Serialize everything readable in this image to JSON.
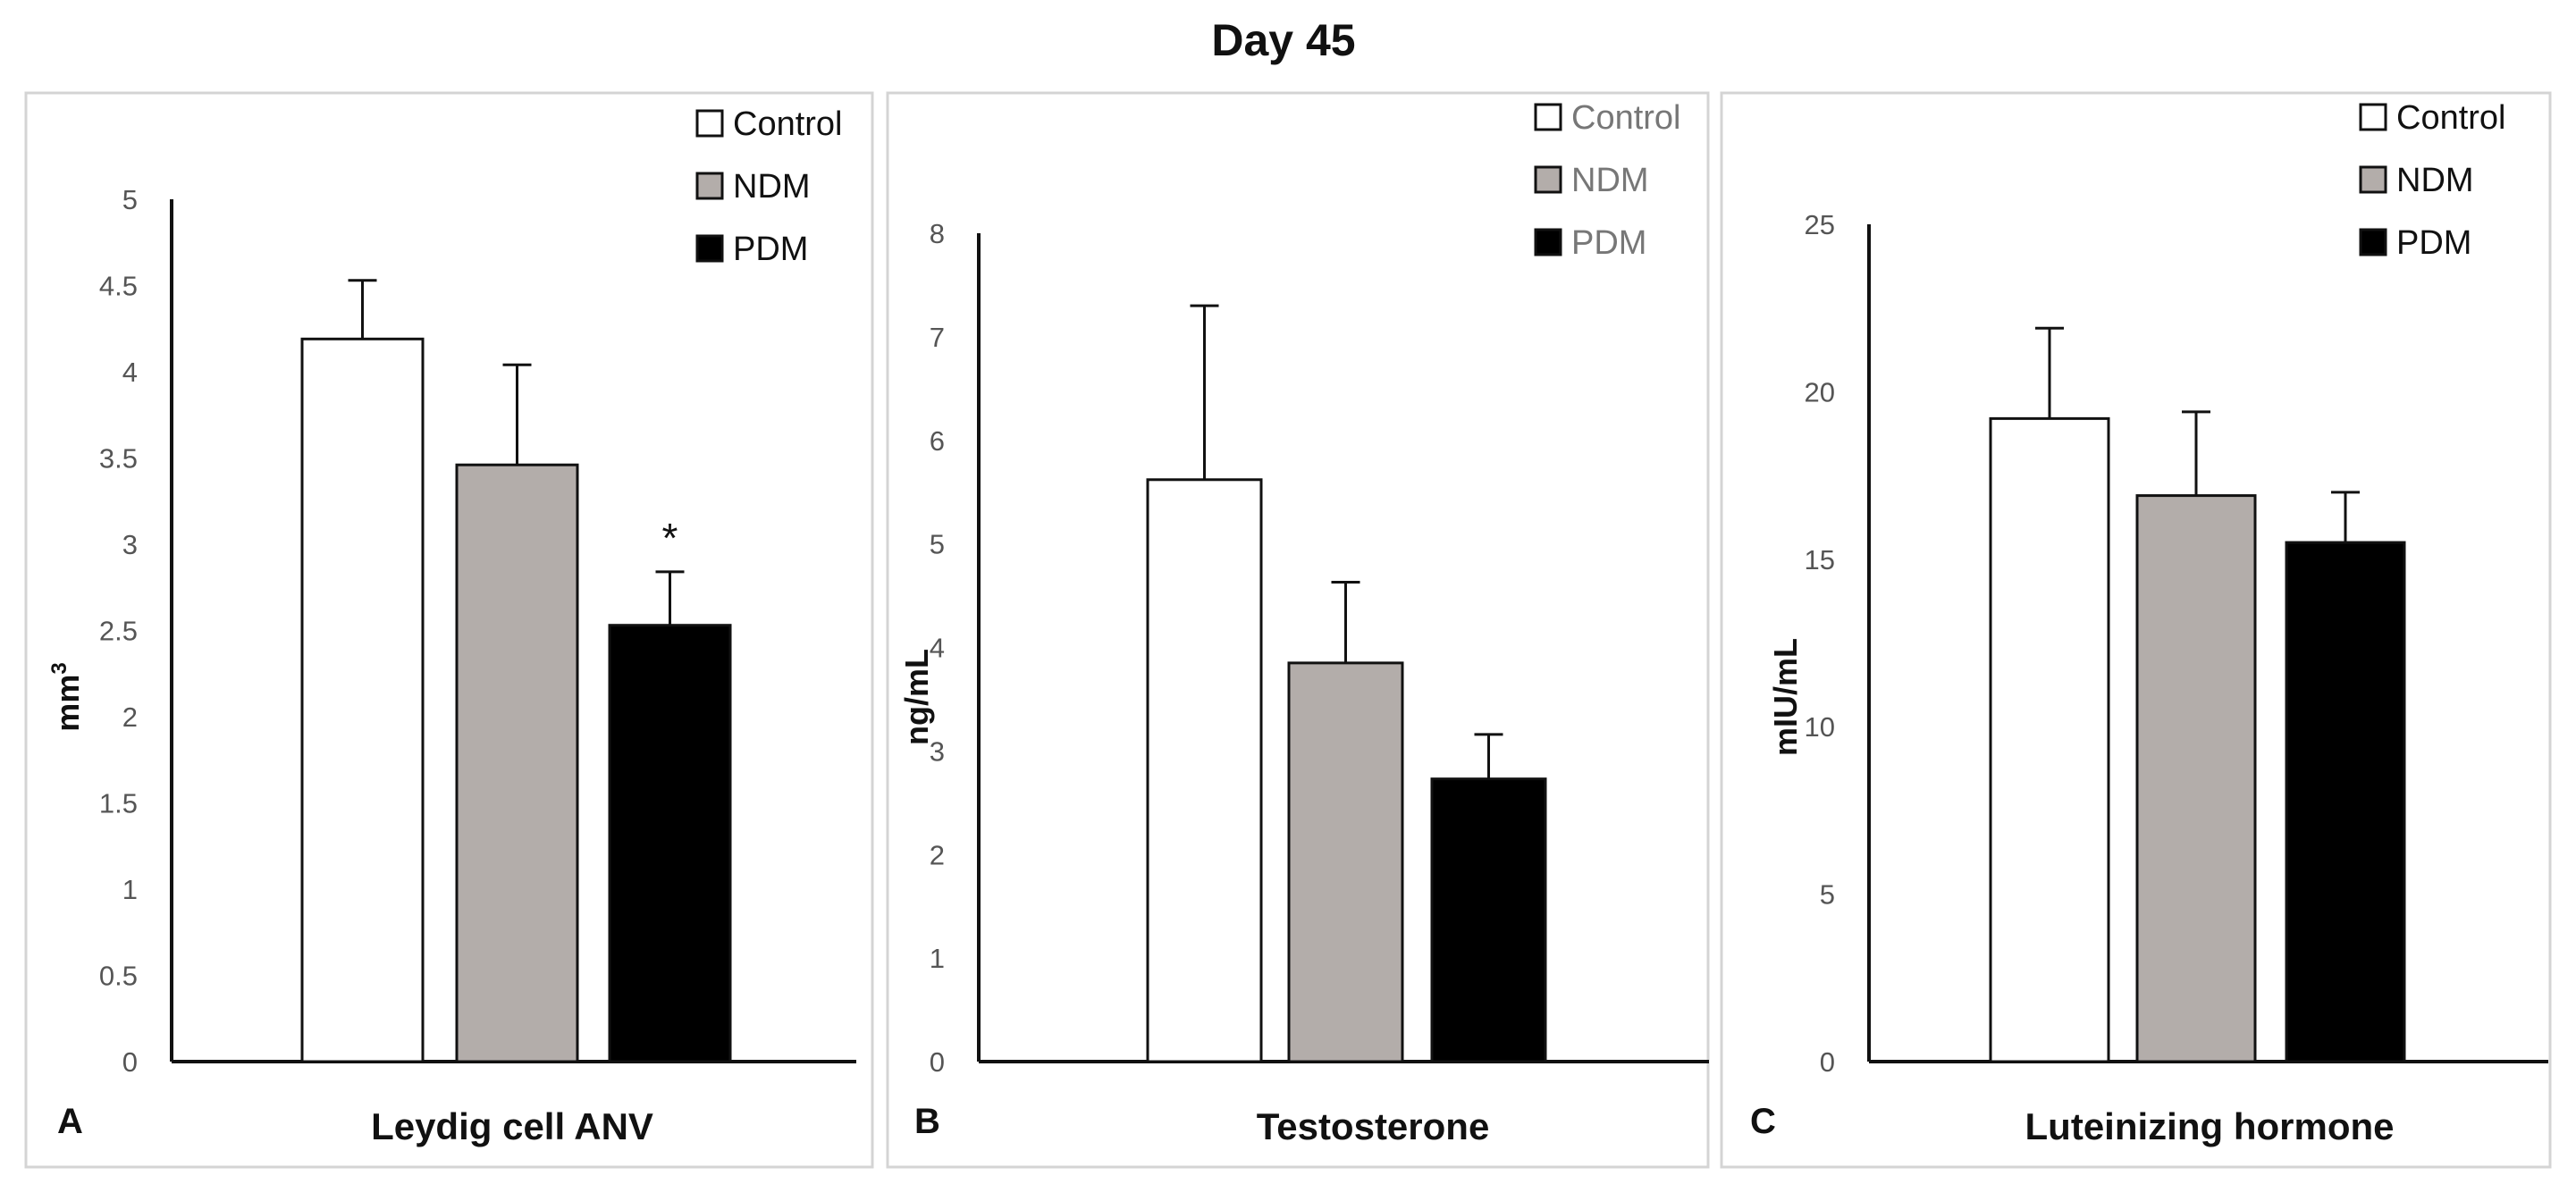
{
  "figure_title": "Day 45",
  "colors": {
    "Control": "#ffffff",
    "NDM": "#b3adaa",
    "PDM": "#000000"
  },
  "chart_data": [
    {
      "type": "bar",
      "panel": "A",
      "title": "Leydig cell ANV",
      "ylabel_base": "mm",
      "ylabel_sup": "3",
      "ylim": [
        0,
        5
      ],
      "yticks": [
        "0",
        "0.5",
        "1",
        "1.5",
        "2",
        "2.5",
        "3",
        "3.5",
        "4",
        "4.5",
        "5"
      ],
      "legend_style": "dark",
      "series": [
        {
          "name": "Control",
          "value": 4.19,
          "error": 0.34,
          "annotation": ""
        },
        {
          "name": "NDM",
          "value": 3.46,
          "error": 0.58,
          "annotation": ""
        },
        {
          "name": "PDM",
          "value": 2.53,
          "error": 0.31,
          "annotation": "*"
        }
      ]
    },
    {
      "type": "bar",
      "panel": "B",
      "title": "Testosterone",
      "ylabel_base": "ng/mL",
      "ylabel_sup": "",
      "ylim": [
        0,
        8
      ],
      "yticks": [
        "0",
        "1",
        "2",
        "3",
        "4",
        "5",
        "6",
        "7",
        "8"
      ],
      "legend_style": "grey",
      "series": [
        {
          "name": "Control",
          "value": 5.62,
          "error": 1.68,
          "annotation": ""
        },
        {
          "name": "NDM",
          "value": 3.85,
          "error": 0.78,
          "annotation": ""
        },
        {
          "name": "PDM",
          "value": 2.73,
          "error": 0.43,
          "annotation": ""
        }
      ]
    },
    {
      "type": "bar",
      "panel": "C",
      "title": "Luteinizing hormone",
      "ylabel_base": "mIU/mL",
      "ylabel_sup": "",
      "ylim": [
        0,
        25
      ],
      "yticks": [
        "0",
        "5",
        "10",
        "15",
        "20",
        "25"
      ],
      "legend_style": "dark",
      "series": [
        {
          "name": "Control",
          "value": 19.2,
          "error": 2.7,
          "annotation": ""
        },
        {
          "name": "NDM",
          "value": 16.9,
          "error": 2.5,
          "annotation": ""
        },
        {
          "name": "PDM",
          "value": 15.5,
          "error": 1.5,
          "annotation": ""
        }
      ]
    }
  ]
}
